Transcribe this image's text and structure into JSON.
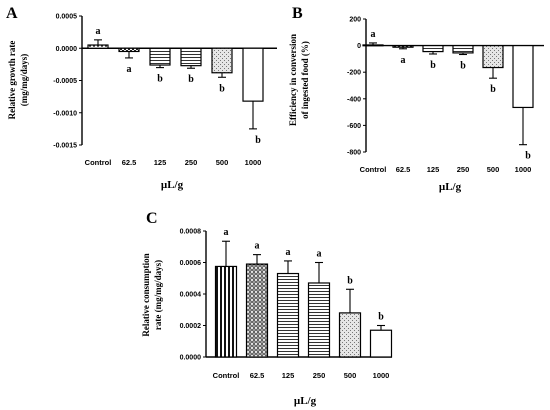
{
  "chart_data": [
    {
      "id": "A",
      "type": "bar",
      "panel_label": "A",
      "ylabel_lines": [
        "Relative growth rate",
        "(mg/mg/days)"
      ],
      "xlabel": "µL/g",
      "categories": [
        "Control",
        "62.5",
        "125",
        "250",
        "500",
        "1000"
      ],
      "values": [
        5e-05,
        -5e-05,
        -0.00026,
        -0.00027,
        -0.00038,
        -0.00082
      ],
      "errors": [
        8e-05,
        0.0001,
        4e-05,
        4e-05,
        7e-05,
        0.00043
      ],
      "letters": [
        "a",
        "a",
        "b",
        "b",
        "b",
        "b"
      ],
      "ylim": [
        -0.0015,
        0.0005
      ],
      "yticks": [
        "0.0005",
        "0.0000",
        "-0.0005",
        "-0.0010",
        "-0.0015"
      ],
      "patterns": [
        "p-dots",
        "p-checker",
        "p-hstripes",
        "p-hstripes",
        "p-speckle",
        "p-white"
      ]
    },
    {
      "id": "B",
      "type": "bar",
      "panel_label": "B",
      "ylabel_lines": [
        "Efficiency in conversion",
        "of ingested food (%)"
      ],
      "xlabel": "µL/g",
      "categories": [
        "Control",
        "62.5",
        "125",
        "250",
        "500",
        "1000"
      ],
      "values": [
        5,
        -12,
        -45,
        -55,
        -165,
        -465
      ],
      "errors": [
        15,
        12,
        18,
        12,
        80,
        280
      ],
      "letters": [
        "a",
        "a",
        "b",
        "b",
        "b",
        "b"
      ],
      "ylim": [
        -800,
        200
      ],
      "yticks": [
        "200",
        "0",
        "-200",
        "-400",
        "-600",
        "-800"
      ],
      "patterns": [
        "p-dots",
        "p-checker",
        "p-hstripes",
        "p-hstripes",
        "p-speckle",
        "p-white"
      ]
    },
    {
      "id": "C",
      "type": "bar",
      "panel_label": "C",
      "ylabel_lines": [
        "Relative consumption",
        "rate (mg/mg/days)"
      ],
      "xlabel": "µL/g",
      "categories": [
        "Control",
        "62.5",
        "125",
        "250",
        "500",
        "1000"
      ],
      "values": [
        0.000575,
        0.00059,
        0.00053,
        0.00047,
        0.00028,
        0.00017
      ],
      "errors": [
        0.00016,
        6e-05,
        8e-05,
        0.00013,
        0.00015,
        3e-05
      ],
      "letters": [
        "a",
        "a",
        "a",
        "a",
        "b",
        "b"
      ],
      "ylim": [
        0,
        0.0008
      ],
      "yticks": [
        "0.0008",
        "0.0006",
        "0.0004",
        "0.0002",
        "0.0000"
      ],
      "patterns": [
        "p-vstripes",
        "p-grid",
        "p-hstripes",
        "p-hstripes",
        "p-speckle",
        "p-white"
      ]
    }
  ]
}
